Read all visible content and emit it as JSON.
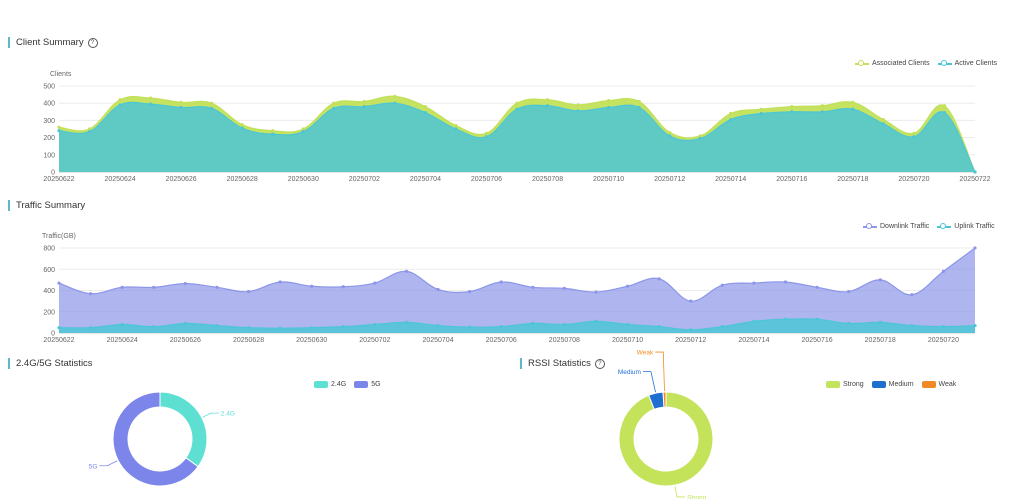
{
  "client_summary": {
    "title": "Client Summary",
    "help": "?",
    "ylabel": "Clients",
    "legend": [
      {
        "label": "Associated Clients",
        "color": "#c2e059"
      },
      {
        "label": "Active Clients",
        "color": "#4cc6d6"
      }
    ]
  },
  "traffic_summary": {
    "title": "Traffic Summary",
    "ylabel": "Traffic(GB)",
    "legend": [
      {
        "label": "Downlink Traffic",
        "color": "#8c96e8"
      },
      {
        "label": "Uplink Traffic",
        "color": "#4cc6d6"
      }
    ]
  },
  "band_stats": {
    "title": "2.4G/5G Statistics",
    "legend": [
      {
        "label": "2.4G",
        "color": "#5de0d2"
      },
      {
        "label": "5G",
        "color": "#7c86ea"
      }
    ],
    "slice_labels": {
      "a": "2.4G",
      "b": "5G"
    }
  },
  "rssi_stats": {
    "title": "RSSI Statistics",
    "help": "?",
    "legend": [
      {
        "label": "Strong",
        "color": "#c5e35a"
      },
      {
        "label": "Medium",
        "color": "#1f6fd1"
      },
      {
        "label": "Weak",
        "color": "#f08a24"
      }
    ],
    "slice_labels": {
      "strong": "Strong",
      "medium": "Medium",
      "weak": "Weak"
    }
  },
  "chart_data": [
    {
      "type": "area",
      "title": "Client Summary",
      "ylabel": "Clients",
      "ylim": [
        0,
        500
      ],
      "yticks": [
        0,
        100,
        200,
        300,
        400,
        500
      ],
      "x": [
        "20250622",
        "20250623",
        "20250624",
        "20250625",
        "20250626",
        "20250627",
        "20250628",
        "20250629",
        "20250630",
        "20250701",
        "20250702",
        "20250703",
        "20250704",
        "20250705",
        "20250706",
        "20250707",
        "20250708",
        "20250709",
        "20250710",
        "20250711",
        "20250712",
        "20250713",
        "20250714",
        "20250715",
        "20250716",
        "20250717",
        "20250718",
        "20250719",
        "20250720",
        "20250721",
        "20250722"
      ],
      "xtick_labels": [
        "20250622",
        "20250624",
        "20250626",
        "20250628",
        "20250630",
        "20250702",
        "20250704",
        "20250706",
        "20250708",
        "20250710",
        "20250712",
        "20250714",
        "20250716",
        "20250718",
        "20250720",
        "20250722"
      ],
      "series": [
        {
          "name": "Associated Clients",
          "color": "#c2e059",
          "values": [
            260,
            250,
            420,
            430,
            405,
            400,
            275,
            240,
            250,
            400,
            410,
            440,
            380,
            270,
            225,
            400,
            420,
            390,
            415,
            410,
            230,
            210,
            340,
            365,
            380,
            385,
            405,
            305,
            225,
            385,
            0
          ]
        },
        {
          "name": "Active Clients",
          "color": "#4cc6d6",
          "values": [
            240,
            235,
            390,
            395,
            375,
            370,
            255,
            220,
            235,
            370,
            380,
            400,
            345,
            250,
            205,
            365,
            385,
            355,
            375,
            375,
            210,
            195,
            305,
            340,
            350,
            350,
            365,
            280,
            205,
            345,
            0
          ]
        }
      ],
      "grid": true,
      "legend": "top-right"
    },
    {
      "type": "area",
      "title": "Traffic Summary",
      "ylabel": "Traffic(GB)",
      "ylim": [
        0,
        800
      ],
      "yticks": [
        0,
        200,
        400,
        600,
        800
      ],
      "x": [
        "20250622",
        "20250623",
        "20250624",
        "20250625",
        "20250626",
        "20250627",
        "20250628",
        "20250629",
        "20250630",
        "20250701",
        "20250702",
        "20250703",
        "20250704",
        "20250705",
        "20250706",
        "20250707",
        "20250708",
        "20250709",
        "20250710",
        "20250711",
        "20250712",
        "20250713",
        "20250714",
        "20250715",
        "20250716",
        "20250717",
        "20250718",
        "20250719",
        "20250720",
        "20250721"
      ],
      "xtick_labels": [
        "20250622",
        "20250624",
        "20250626",
        "20250628",
        "20250630",
        "20250702",
        "20250704",
        "20250706",
        "20250708",
        "20250710",
        "20250712",
        "20250714",
        "20250716",
        "20250718",
        "20250720"
      ],
      "series": [
        {
          "name": "Downlink Traffic",
          "color": "#8c96e8",
          "values": [
            470,
            370,
            430,
            430,
            465,
            430,
            390,
            480,
            440,
            435,
            470,
            580,
            410,
            390,
            480,
            430,
            420,
            385,
            440,
            510,
            300,
            450,
            470,
            480,
            430,
            390,
            500,
            360,
            580,
            800
          ]
        },
        {
          "name": "Uplink Traffic",
          "color": "#4cc6d6",
          "values": [
            50,
            50,
            80,
            60,
            90,
            70,
            50,
            45,
            50,
            60,
            80,
            100,
            70,
            55,
            60,
            90,
            80,
            110,
            80,
            60,
            30,
            60,
            110,
            130,
            130,
            90,
            100,
            70,
            60,
            70
          ]
        }
      ],
      "grid": true,
      "legend": "top-right"
    },
    {
      "type": "pie",
      "title": "2.4G/5G Statistics",
      "categories": [
        "2.4G",
        "5G"
      ],
      "values": [
        35,
        65
      ],
      "colors": [
        "#5de0d2",
        "#7c86ea"
      ],
      "legend": "top"
    },
    {
      "type": "pie",
      "title": "RSSI Statistics",
      "categories": [
        "Strong",
        "Medium",
        "Weak"
      ],
      "values": [
        94,
        5,
        1
      ],
      "colors": [
        "#c5e35a",
        "#1f6fd1",
        "#f08a24"
      ],
      "legend": "top-right"
    }
  ]
}
